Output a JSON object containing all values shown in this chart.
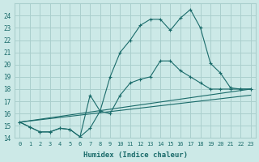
{
  "xlabel": "Humidex (Indice chaleur)",
  "background_color": "#cce9e7",
  "grid_color": "#aacfcd",
  "line_color": "#1a6b6a",
  "xlim": [
    0,
    23
  ],
  "ylim": [
    14.0,
    25.0
  ],
  "xticks": [
    0,
    1,
    2,
    3,
    4,
    5,
    6,
    7,
    8,
    9,
    10,
    11,
    12,
    13,
    14,
    15,
    16,
    17,
    18,
    19,
    20,
    21,
    22,
    23
  ],
  "yticks": [
    14,
    15,
    16,
    17,
    18,
    19,
    20,
    21,
    22,
    23,
    24
  ],
  "series": [
    {
      "x": [
        0,
        1,
        2,
        3,
        4,
        5,
        6,
        7,
        8,
        9,
        10,
        11,
        12,
        13,
        14,
        15,
        16,
        17,
        18,
        19,
        20,
        21,
        22,
        23
      ],
      "y": [
        15.3,
        14.9,
        14.5,
        14.5,
        14.8,
        14.7,
        14.1,
        14.8,
        16.2,
        19.0,
        21.0,
        22.0,
        23.2,
        23.7,
        23.7,
        22.8,
        23.8,
        24.5,
        23.0,
        20.1,
        19.3,
        18.1,
        18.0,
        18.0
      ],
      "marker": true
    },
    {
      "x": [
        0,
        1,
        2,
        3,
        4,
        5,
        6,
        7,
        8,
        9,
        10,
        11,
        12,
        13,
        14,
        15,
        16,
        17,
        18,
        19,
        20,
        21,
        22,
        23
      ],
      "y": [
        15.3,
        14.9,
        14.5,
        14.5,
        14.8,
        14.7,
        14.1,
        17.5,
        16.2,
        16.0,
        17.5,
        18.5,
        18.8,
        19.0,
        20.3,
        20.3,
        19.5,
        19.0,
        18.5,
        18.0,
        18.0,
        18.0,
        18.0,
        18.0
      ],
      "marker": true
    },
    {
      "x": [
        0,
        23
      ],
      "y": [
        15.3,
        18.0
      ],
      "marker": false
    },
    {
      "x": [
        0,
        23
      ],
      "y": [
        15.3,
        17.5
      ],
      "marker": false
    }
  ]
}
